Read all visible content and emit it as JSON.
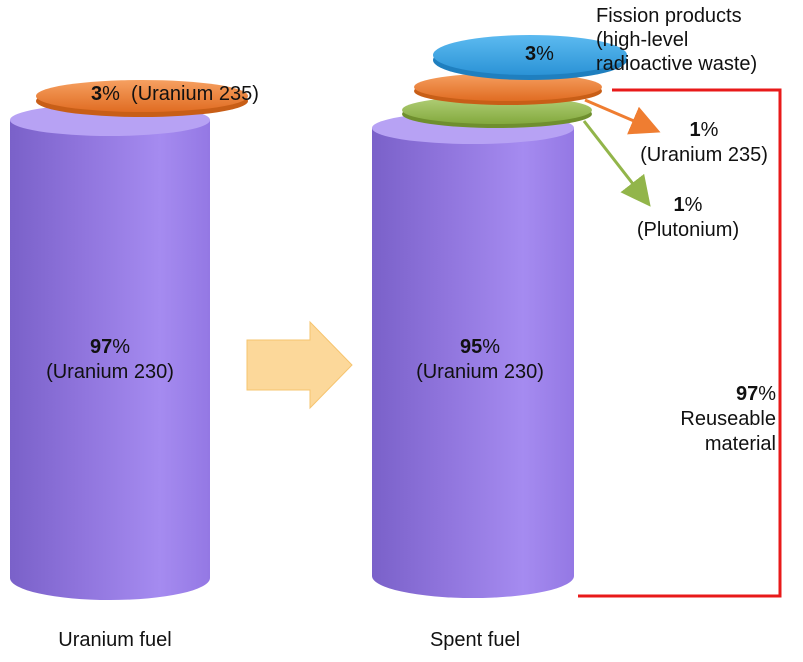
{
  "left_column": {
    "top_disc": {
      "percent": "3",
      "unit": "%",
      "name": "(Uranium 235)"
    },
    "body": {
      "percent": "97",
      "unit": "%",
      "name": "(Uranium 230)"
    },
    "caption": "Uranium fuel"
  },
  "right_column": {
    "fission_disc": {
      "percent": "3",
      "unit": "%"
    },
    "fission_label": {
      "line1": "Fission products",
      "line2": "(high-level",
      "line3": "radioactive waste)"
    },
    "u235": {
      "percent": "1",
      "unit": "%",
      "name": "(Uranium 235)"
    },
    "plutonium": {
      "percent": "1",
      "unit": "%",
      "name": "(Plutonium)"
    },
    "body": {
      "percent": "95",
      "unit": "%",
      "name": "(Uranium 230)"
    },
    "reusable": {
      "percent": "97",
      "unit": "%",
      "line1": "Reuseable",
      "line2": "material"
    },
    "caption": "Spent fuel"
  },
  "colors": {
    "cylinder": "#9b7fe6",
    "uranium235_disc": "#ef7d31",
    "plutonium_disc": "#92b54a",
    "fission_disc": "#3aa2e2",
    "transition_arrow": "#fcd89a",
    "bracket": "#e81a1a"
  },
  "icons": {
    "transition": "right-arrow-icon"
  }
}
